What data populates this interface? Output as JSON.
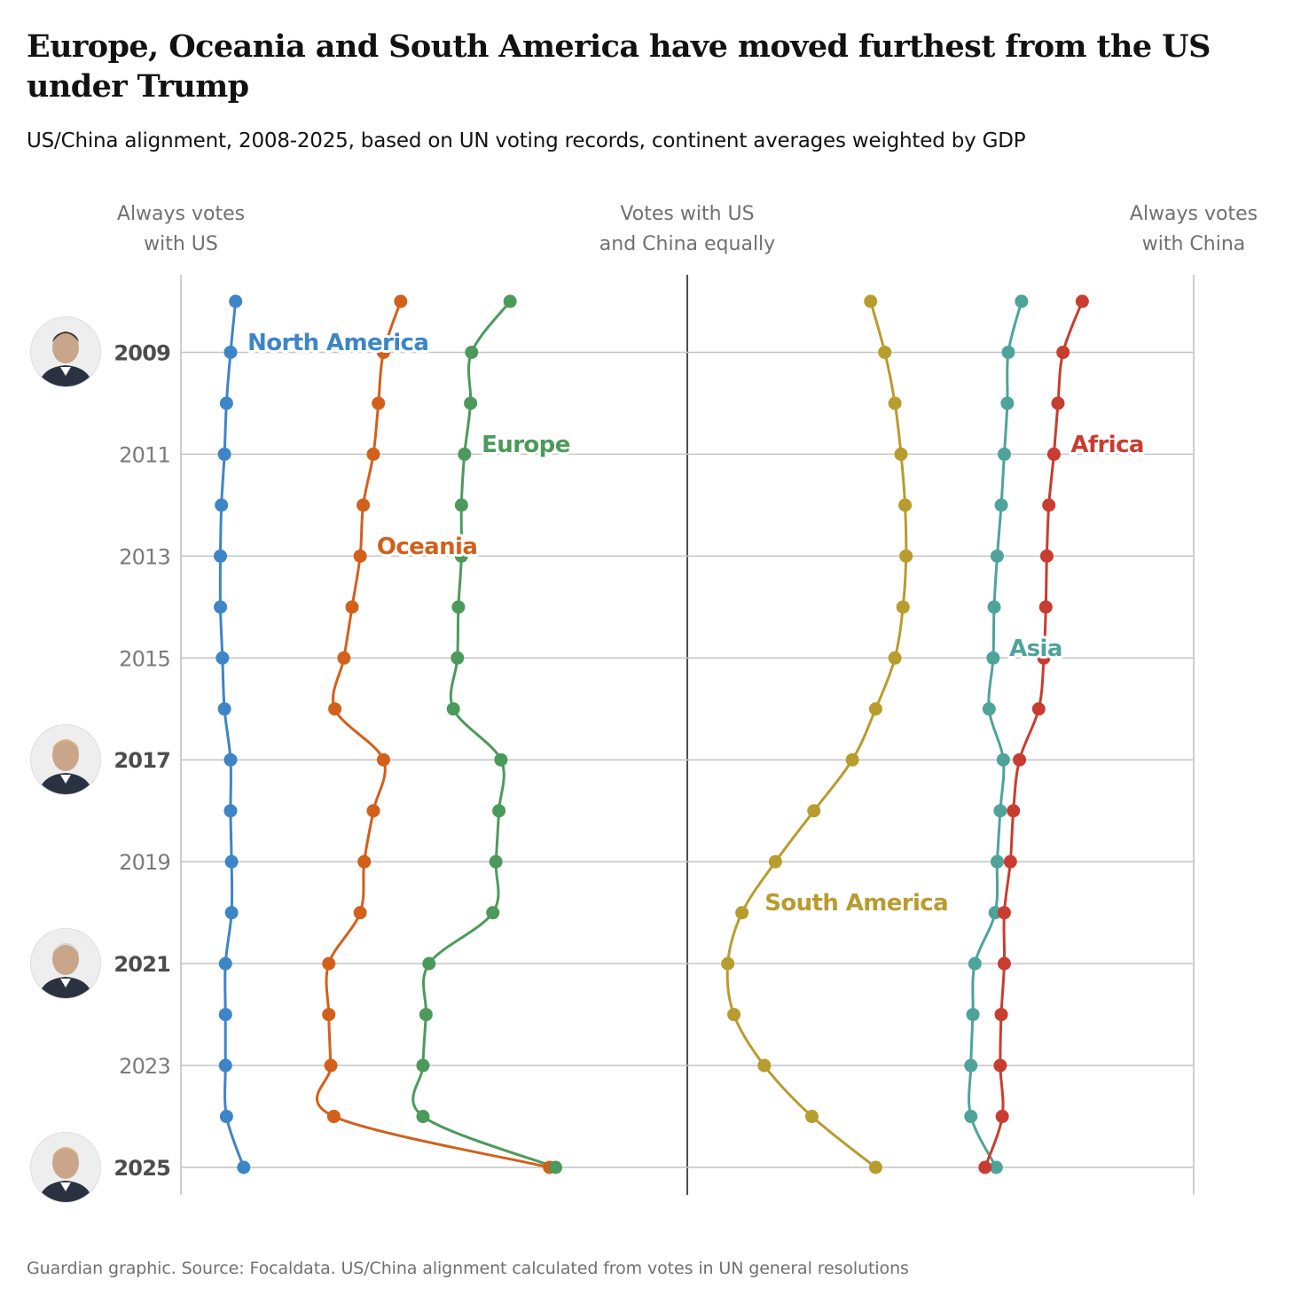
{
  "title": "Europe, Oceania and South America have moved furthest from the US under Trump",
  "subtitle": "US/China alignment, 2008-2025, based on UN voting records, continent averages weighted by GDP",
  "source": "Guardian graphic. Source: Focaldata. US/China alignment calculated from votes in UN general resolutions",
  "chart_data": {
    "type": "line",
    "orientation": "vertical-time",
    "x_scale": "alignment: US on the left, China on the right",
    "x_labels": {
      "left": "Always votes\nwith US",
      "center": "Votes with US\nand China equally",
      "right": "Always votes\nwith China"
    },
    "xlim": [
      0,
      100
    ],
    "years": [
      2008,
      2009,
      2010,
      2011,
      2012,
      2013,
      2014,
      2015,
      2016,
      2017,
      2018,
      2019,
      2020,
      2021,
      2022,
      2023,
      2024,
      2025
    ],
    "year_ticks": [
      {
        "year": 2009,
        "label": "2009",
        "bold": true
      },
      {
        "year": 2011,
        "label": "2011",
        "bold": false
      },
      {
        "year": 2013,
        "label": "2013",
        "bold": false
      },
      {
        "year": 2015,
        "label": "2015",
        "bold": false
      },
      {
        "year": 2017,
        "label": "2017",
        "bold": true
      },
      {
        "year": 2019,
        "label": "2019",
        "bold": false
      },
      {
        "year": 2021,
        "label": "2021",
        "bold": true
      },
      {
        "year": 2023,
        "label": "2023",
        "bold": false
      },
      {
        "year": 2025,
        "label": "2025",
        "bold": true
      }
    ],
    "grid": true,
    "series": [
      {
        "name": "North America",
        "color": "#3d85c6",
        "values": [
          5.4,
          4.9,
          4.5,
          4.3,
          4.0,
          3.9,
          3.9,
          4.1,
          4.3,
          4.9,
          4.9,
          5.0,
          5.0,
          4.4,
          4.4,
          4.4,
          4.5,
          6.2
        ]
      },
      {
        "name": "Oceania",
        "color": "#d2601a",
        "values": [
          21.7,
          20.0,
          19.5,
          19.0,
          18.0,
          17.7,
          16.9,
          16.1,
          15.2,
          20.0,
          19.0,
          18.1,
          17.7,
          14.6,
          14.6,
          14.8,
          15.1,
          36.4
        ]
      },
      {
        "name": "Europe",
        "color": "#4c9a5b",
        "values": [
          32.5,
          28.7,
          28.6,
          28.0,
          27.7,
          27.7,
          27.4,
          27.3,
          26.9,
          31.6,
          31.4,
          31.1,
          30.8,
          24.5,
          24.2,
          23.9,
          23.9,
          37.0
        ]
      },
      {
        "name": "South America",
        "color": "#b89c2e",
        "values": [
          68.1,
          69.5,
          70.5,
          71.1,
          71.5,
          71.6,
          71.3,
          70.5,
          68.6,
          66.3,
          62.5,
          58.7,
          55.4,
          54.0,
          54.6,
          57.6,
          62.3,
          68.6
        ]
      },
      {
        "name": "Asia",
        "color": "#4ea39a",
        "values": [
          83.0,
          81.7,
          81.6,
          81.3,
          81.0,
          80.6,
          80.3,
          80.2,
          79.8,
          81.2,
          80.9,
          80.6,
          80.4,
          78.4,
          78.2,
          78.0,
          78.0,
          80.5
        ]
      },
      {
        "name": "Africa",
        "color": "#c83d2f",
        "values": [
          89.0,
          87.1,
          86.6,
          86.2,
          85.7,
          85.5,
          85.4,
          85.2,
          84.7,
          82.8,
          82.2,
          81.9,
          81.3,
          81.3,
          81.0,
          80.9,
          81.1,
          79.4
        ]
      }
    ],
    "series_labels": [
      {
        "series": "North America",
        "year": 2008.8
      },
      {
        "series": "Europe",
        "year": 2010.8
      },
      {
        "series": "Oceania",
        "year": 2012.8
      },
      {
        "series": "Asia",
        "year": 2014.8
      },
      {
        "series": "Africa",
        "year": 2010.8
      },
      {
        "series": "South America",
        "year": 2019.8
      }
    ],
    "presidents": [
      {
        "year": 2009,
        "icon": "obama-portrait-icon"
      },
      {
        "year": 2017,
        "icon": "trump-portrait-icon"
      },
      {
        "year": 2021,
        "icon": "biden-portrait-icon"
      },
      {
        "year": 2025,
        "icon": "trump-portrait-icon"
      }
    ]
  }
}
